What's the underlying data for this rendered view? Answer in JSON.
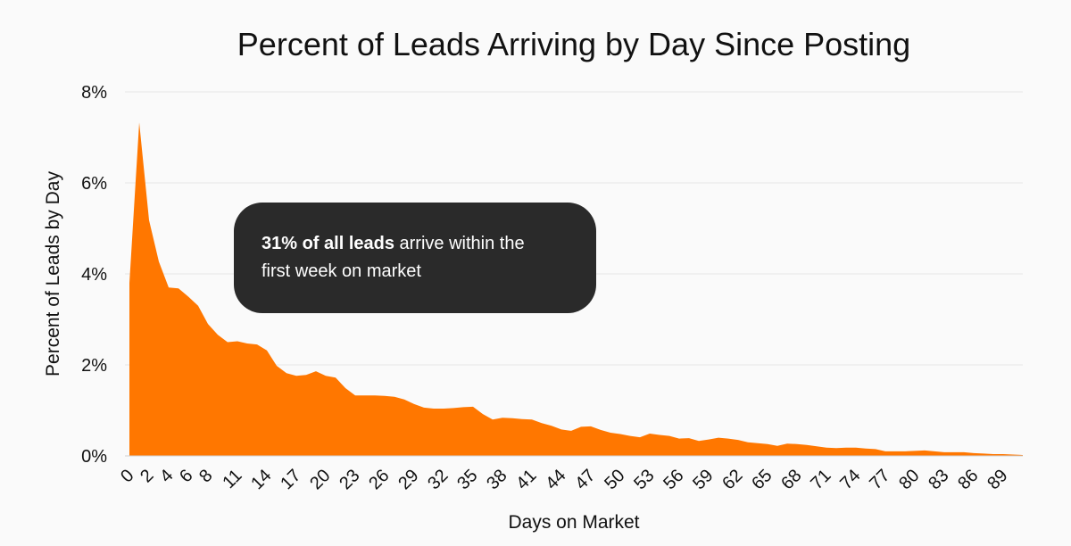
{
  "chart_data": {
    "type": "area",
    "title": "Percent of Leads Arriving by Day Since Posting",
    "xlabel": "Days on Market",
    "ylabel": "Percent of Leads by Day",
    "ylim": [
      0,
      8
    ],
    "yticks": [
      "0%",
      "2%",
      "4%",
      "6%",
      "8%"
    ],
    "ytick_values": [
      0,
      2,
      4,
      6,
      8
    ],
    "grid": true,
    "color": "#ff7700",
    "x_tick_labels": [
      0,
      2,
      4,
      6,
      8,
      11,
      14,
      17,
      20,
      23,
      26,
      29,
      32,
      35,
      38,
      41,
      44,
      47,
      50,
      53,
      56,
      59,
      62,
      65,
      68,
      71,
      74,
      77,
      80,
      83,
      86,
      89
    ],
    "x": [
      0,
      1,
      2,
      3,
      4,
      5,
      6,
      7,
      8,
      9,
      10,
      11,
      12,
      13,
      14,
      15,
      16,
      17,
      18,
      19,
      20,
      21,
      22,
      23,
      24,
      25,
      26,
      27,
      28,
      29,
      30,
      31,
      32,
      33,
      34,
      35,
      36,
      37,
      38,
      39,
      40,
      41,
      42,
      43,
      44,
      45,
      46,
      47,
      48,
      49,
      50,
      51,
      52,
      53,
      54,
      55,
      56,
      57,
      58,
      59,
      60,
      61,
      62,
      63,
      64,
      65,
      66,
      67,
      68,
      69,
      70,
      71,
      72,
      73,
      74,
      75,
      76,
      77,
      78,
      79,
      80,
      81,
      82,
      83,
      84,
      85,
      86,
      87,
      88,
      89,
      90,
      91
    ],
    "values": [
      3.8,
      7.33,
      5.18,
      4.27,
      3.7,
      3.68,
      3.5,
      3.3,
      2.9,
      2.66,
      2.5,
      2.52,
      2.47,
      2.45,
      2.32,
      1.98,
      1.82,
      1.76,
      1.78,
      1.86,
      1.76,
      1.72,
      1.49,
      1.33,
      1.33,
      1.33,
      1.32,
      1.3,
      1.24,
      1.14,
      1.06,
      1.04,
      1.04,
      1.05,
      1.07,
      1.08,
      0.92,
      0.8,
      0.84,
      0.83,
      0.81,
      0.8,
      0.72,
      0.66,
      0.58,
      0.55,
      0.64,
      0.65,
      0.57,
      0.51,
      0.48,
      0.44,
      0.41,
      0.49,
      0.46,
      0.44,
      0.38,
      0.39,
      0.33,
      0.36,
      0.4,
      0.38,
      0.35,
      0.3,
      0.28,
      0.26,
      0.22,
      0.27,
      0.26,
      0.24,
      0.21,
      0.18,
      0.17,
      0.18,
      0.18,
      0.16,
      0.15,
      0.1,
      0.1,
      0.1,
      0.11,
      0.12,
      0.1,
      0.08,
      0.08,
      0.08,
      0.06,
      0.05,
      0.04,
      0.04,
      0.03,
      0.02
    ],
    "annotation": {
      "bold": "31% of all leads",
      "line1_rest": " arrive within the",
      "line2": "first week on market",
      "background": "#2a2a2a"
    }
  }
}
